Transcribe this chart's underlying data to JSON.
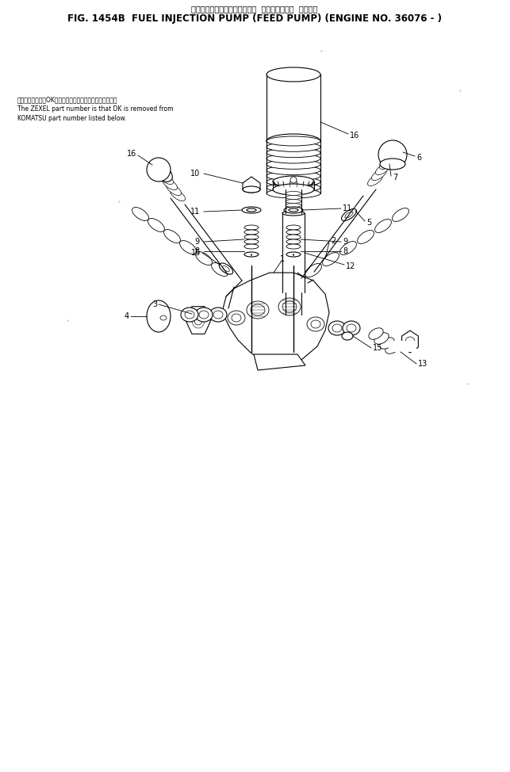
{
  "title_jp": "フェルインジェクションポンプ  フィードポンプ  適用号機",
  "title_en": "FIG. 1454B  FUEL INJECTION PUMP (FEED PUMP) (ENGINE NO. 36076 - )",
  "note_jp": "品番のメーカ記号OKを除いたものがゼクセルの品番です。",
  "note_en1": "The ZEXEL part number is that DK is removed from",
  "note_en2": "KOMATSU part number listed below.",
  "bg_color": "#ffffff",
  "line_color": "#000000"
}
